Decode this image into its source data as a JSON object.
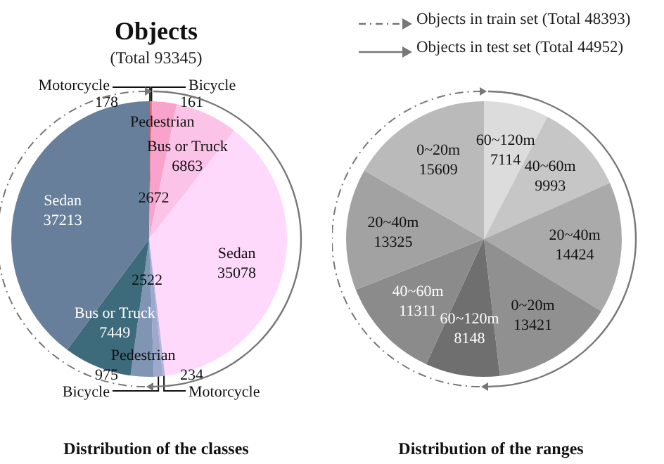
{
  "chart_data": [
    {
      "type": "pie",
      "title": "Objects",
      "subtitle": "(Total 93345)",
      "xlabel": "Distribution of the classes",
      "annotations": [
        "Objects in train set (Total 48393)",
        "Objects in test set (Total 44952)"
      ],
      "categories": [
        "Motorcycle",
        "Bicycle",
        "Pedestrian",
        "Bus or Truck",
        "Sedan",
        "Motorcycle",
        "Bicycle",
        "Pedestrian",
        "Bus or Truck",
        "Sedan"
      ],
      "values": [
        178,
        161,
        2672,
        6863,
        35078,
        234,
        975,
        2522,
        7449,
        37213
      ],
      "colors": [
        "#f0484e",
        "#f2708a",
        "#f8a2cc",
        "#fbc3e8",
        "#ffd9fb",
        "#b4b4dc",
        "#9ea8cc",
        "#8094b3",
        "#3d6b7b",
        "#687f9b"
      ],
      "data_labels": true,
      "legend": false
    },
    {
      "type": "pie",
      "xlabel": "Distribution of the ranges",
      "categories": [
        "60~120m",
        "40~60m",
        "20~40m",
        "0~20m",
        "60~120m",
        "40~60m",
        "20~40m",
        "0~20m"
      ],
      "values": [
        7114,
        9993,
        14424,
        13421,
        8148,
        11311,
        13325,
        15609
      ],
      "colors": [
        "#dcdcdc",
        "#c6c6c6",
        "#aaaaaa",
        "#909090",
        "#6f6f6f",
        "#8b8b8b",
        "#a2a2a2",
        "#bababa"
      ],
      "data_labels": true,
      "legend": false
    }
  ]
}
